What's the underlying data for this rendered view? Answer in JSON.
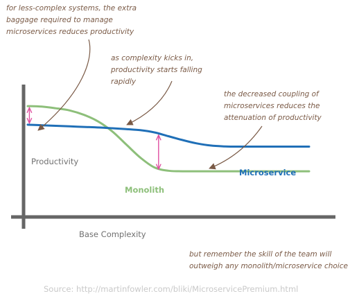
{
  "colors": {
    "monolith": "#8dbf7a",
    "microservice": "#1f6fb7",
    "axis": "#666666",
    "annotation": "#7a5a46",
    "marker": "#e04fa0",
    "label": "#707070",
    "source": "#c9c9c9"
  },
  "chart_data": {
    "type": "line",
    "title": "",
    "xlabel": "Base Complexity",
    "ylabel": "Productivity",
    "x_ticks": false,
    "y_ticks": false,
    "grid": false,
    "legend": "inline series labels",
    "x": [
      0,
      5,
      10,
      15,
      20,
      25,
      30,
      35,
      40,
      45,
      50,
      55,
      60,
      65,
      70,
      75,
      80,
      85,
      90,
      95,
      100
    ],
    "xlim": [
      0,
      100
    ],
    "ylim": [
      0,
      100
    ],
    "series": [
      {
        "name": "Monolith",
        "color_key": "monolith",
        "values": [
          93,
          92.5,
          91,
          89,
          85,
          79,
          70,
          58,
          46,
          37,
          34,
          33.5,
          33.5,
          33.5,
          33.5,
          33.5,
          33.5,
          33.5,
          33.5,
          33.5,
          33.5
        ]
      },
      {
        "name": "Microservice",
        "color_key": "microservice",
        "values": [
          76,
          75.5,
          75,
          74.5,
          74,
          73.5,
          72.8,
          72,
          71,
          69,
          65.5,
          62,
          59,
          57,
          56.2,
          56,
          56,
          56,
          56,
          56,
          56
        ]
      }
    ],
    "markers": [
      {
        "x": 0.6,
        "y_from": 76,
        "y_to": 93,
        "color_key": "marker"
      },
      {
        "x": 46.5,
        "y_from": 34,
        "y_to": 68,
        "color_key": "marker"
      }
    ],
    "annotations": [
      {
        "id": "less-complex",
        "text": "for less-complex systems, the extra\nbaggage required to manage\nmicroservices reduces productivity"
      },
      {
        "id": "complexity-kicks",
        "text": "as complexity kicks in,\nproductivity starts falling\nrapidly"
      },
      {
        "id": "decreased-coupling",
        "text": "the decreased coupling of\nmicroservices reduces the\nattenuation of productivity"
      },
      {
        "id": "team-skill",
        "text": "but remember the skill of the team will\noutweigh any monolith/microservice choice"
      }
    ],
    "series_labels": {
      "monolith": "Monolith",
      "microservice": "Microservice"
    }
  },
  "source_text": "Source: http://martinfowler.com/bliki/MicroservicePremium.html"
}
